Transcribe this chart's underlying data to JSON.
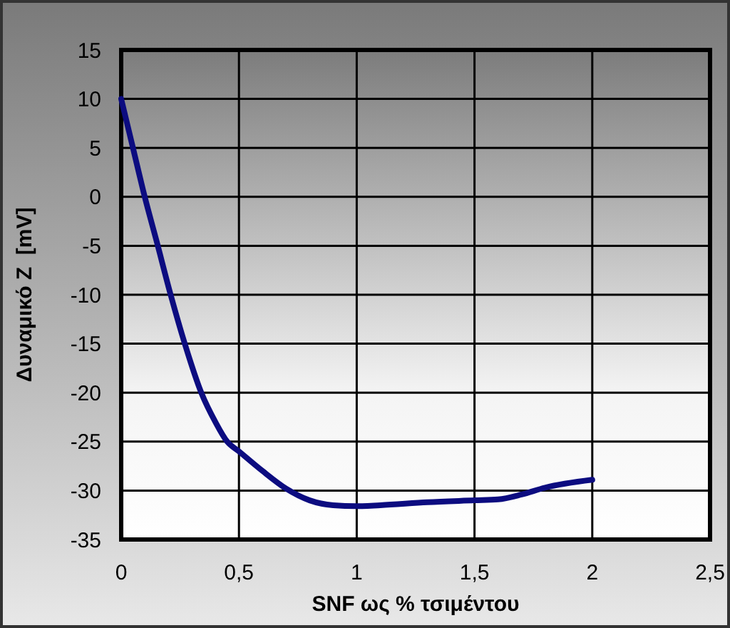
{
  "chart_data": {
    "type": "line",
    "xlabel": "SNF ως % τσιμέντου",
    "ylabel": "Δυναμικό Z  [mV]",
    "x": [
      0,
      0.05,
      0.1,
      0.15,
      0.21,
      0.27,
      0.34,
      0.4,
      0.45,
      0.5,
      0.6,
      0.7,
      0.8,
      0.9,
      1.0,
      1.1,
      1.3,
      1.5,
      1.6,
      1.7,
      1.8,
      2.0
    ],
    "series": [
      {
        "color": "#0c0c80",
        "values": [
          10,
          5,
          0,
          -4.5,
          -10,
          -15,
          -20,
          -23,
          -25,
          -26,
          -28,
          -29.8,
          -31,
          -31.5,
          -31.6,
          -31.5,
          -31.2,
          -31,
          -30.9,
          -30.4,
          -29.7,
          -28.9
        ]
      }
    ],
    "xlim": [
      0,
      2.5
    ],
    "xticks": [
      0,
      {
        "value": 0.5,
        "label": "0,5"
      },
      1,
      {
        "value": 1.5,
        "label": "1,5"
      },
      2,
      {
        "value": 2.5,
        "label": "2,5"
      }
    ],
    "ylim": [
      -35,
      15
    ],
    "yticks": [
      -35,
      -30,
      -25,
      -20,
      -15,
      -10,
      -5,
      0,
      5,
      10,
      15
    ],
    "grid": true,
    "marker": "none",
    "line_style": "solid"
  }
}
